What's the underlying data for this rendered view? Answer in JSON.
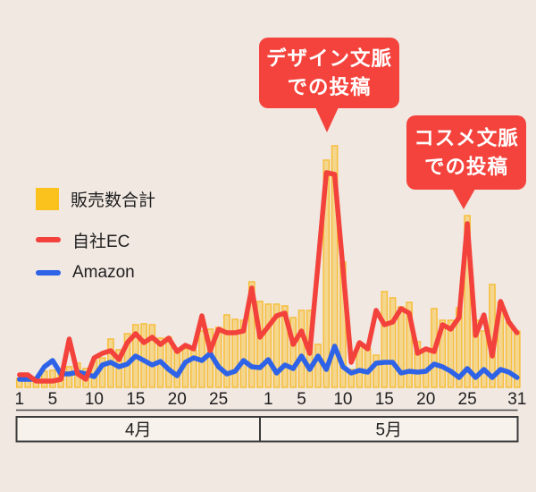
{
  "colors": {
    "background": "#F1E8E2",
    "bar_fill": "rgba(250,196,58,0.5)",
    "bar_stroke": "#F6BE3A",
    "bar_legend": "#FBC21D",
    "jisha_ec_red": "#F3413C",
    "amazon_blue": "#2E63E7",
    "callout_red": "#F4433C",
    "text": "#1E1E1E"
  },
  "legend": {
    "items": [
      {
        "label": "販売数合計",
        "swatch": "square",
        "color": "#FBC21D"
      },
      {
        "label": "自社EC",
        "swatch": "line",
        "color": "#F3413C"
      },
      {
        "label": "Amazon",
        "swatch": "line",
        "color": "#2E63E7"
      }
    ]
  },
  "callouts": [
    {
      "line1": "デザイン文脈",
      "line2": "での投稿",
      "points_to": "5/9 peak"
    },
    {
      "line1": "コスメ文脈",
      "line2": "での投稿",
      "points_to": "5/25 peak"
    }
  ],
  "chart_data": {
    "type": "combo bar + line",
    "y_axis_visible": false,
    "value_unit": "relative sales units (no y-axis labels shown)",
    "months": [
      {
        "label": "4月",
        "days": 30
      },
      {
        "label": "5月",
        "days": 31
      }
    ],
    "categories": [
      "4/1",
      "4/2",
      "4/3",
      "4/4",
      "4/5",
      "4/6",
      "4/7",
      "4/8",
      "4/9",
      "4/10",
      "4/11",
      "4/12",
      "4/13",
      "4/14",
      "4/15",
      "4/16",
      "4/17",
      "4/18",
      "4/19",
      "4/20",
      "4/21",
      "4/22",
      "4/23",
      "4/24",
      "4/25",
      "4/26",
      "4/27",
      "4/28",
      "4/29",
      "4/30",
      "5/1",
      "5/2",
      "5/3",
      "5/4",
      "5/5",
      "5/6",
      "5/7",
      "5/8",
      "5/9",
      "5/10",
      "5/11",
      "5/12",
      "5/13",
      "5/14",
      "5/15",
      "5/16",
      "5/17",
      "5/18",
      "5/19",
      "5/20",
      "5/21",
      "5/22",
      "5/23",
      "5/24",
      "5/25",
      "5/26",
      "5/27",
      "5/28",
      "5/29",
      "5/30",
      "5/31"
    ],
    "ticks": [
      {
        "index": 0,
        "label": "1"
      },
      {
        "index": 4,
        "label": "5"
      },
      {
        "index": 9,
        "label": "10"
      },
      {
        "index": 14,
        "label": "15"
      },
      {
        "index": 19,
        "label": "20"
      },
      {
        "index": 24,
        "label": "25"
      },
      {
        "index": 30,
        "label": "1"
      },
      {
        "index": 34,
        "label": "5"
      },
      {
        "index": 39,
        "label": "10"
      },
      {
        "index": 44,
        "label": "15"
      },
      {
        "index": 49,
        "label": "20"
      },
      {
        "index": 54,
        "label": "25"
      },
      {
        "index": 60,
        "label": "31"
      }
    ],
    "series": [
      {
        "name": "販売数合計",
        "type": "bar",
        "values": [
          10,
          10,
          8,
          18,
          19,
          17,
          23,
          27,
          21,
          30,
          33,
          54,
          42,
          60,
          70,
          71,
          70,
          55,
          56,
          40,
          43,
          41,
          63,
          65,
          67,
          81,
          76,
          75,
          118,
          96,
          93,
          93,
          91,
          78,
          86,
          86,
          48,
          254,
          270,
          140,
          20,
          49,
          43,
          36,
          107,
          100,
          90,
          95,
          51,
          41,
          88,
          75,
          75,
          89,
          192,
          75,
          63,
          115,
          95,
          73,
          63
        ]
      },
      {
        "name": "自社EC",
        "type": "line",
        "values": [
          14,
          14,
          7,
          7,
          7,
          9,
          54,
          15,
          9,
          33,
          38,
          41,
          31,
          50,
          60,
          50,
          56,
          48,
          55,
          40,
          47,
          43,
          80,
          41,
          65,
          61,
          61,
          63,
          111,
          56,
          68,
          80,
          83,
          48,
          63,
          38,
          138,
          240,
          238,
          133,
          28,
          50,
          43,
          86,
          70,
          73,
          88,
          83,
          38,
          43,
          40,
          70,
          65,
          78,
          183,
          58,
          81,
          35,
          96,
          73,
          61
        ]
      },
      {
        "name": "Amazon",
        "type": "line",
        "values": [
          9,
          9,
          9,
          23,
          30,
          15,
          15,
          17,
          15,
          12,
          25,
          28,
          23,
          26,
          35,
          30,
          25,
          29,
          20,
          13,
          28,
          33,
          30,
          38,
          23,
          15,
          18,
          30,
          23,
          22,
          31,
          16,
          25,
          21,
          35,
          20,
          35,
          20,
          46,
          23,
          16,
          19,
          17,
          27,
          28,
          28,
          16,
          18,
          17,
          18,
          26,
          23,
          18,
          11,
          21,
          11,
          20,
          11,
          20,
          17,
          11
        ]
      }
    ]
  }
}
